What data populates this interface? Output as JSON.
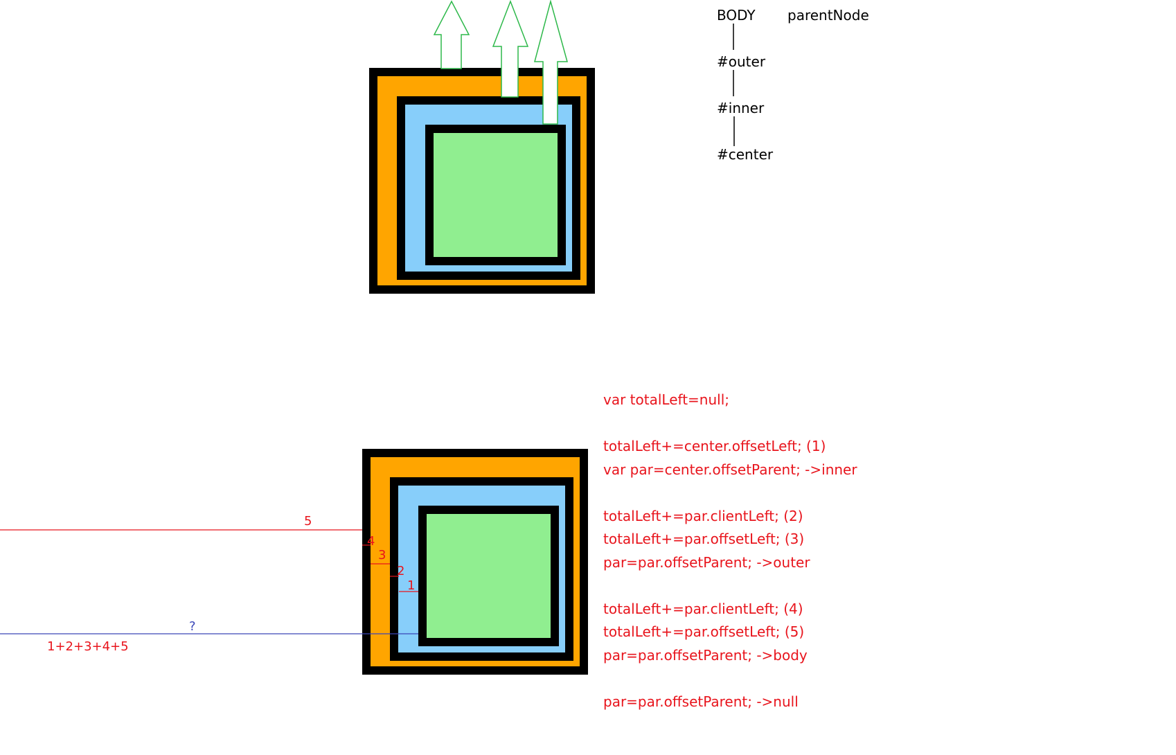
{
  "tree": {
    "nodes": [
      "BODY",
      "#outer",
      "#inner",
      "#center"
    ],
    "relation_label": "parentNode"
  },
  "code": {
    "lines": [
      "var totalLeft=null;",
      "totalLeft+=center.offsetLeft;  (1)",
      "var par=center.offsetParent;  ->inner",
      "totalLeft+=par.clientLeft; (2)",
      "totalLeft+=par.offsetLeft; (3)",
      "par=par.offsetParent; ->outer",
      "totalLeft+=par.clientLeft; (4)",
      "totalLeft+=par.offsetLeft; (5)",
      "par=par.offsetParent; ->body",
      "par=par.offsetParent; ->null"
    ]
  },
  "markers": {
    "m1": "1",
    "m2": "2",
    "m3": "3",
    "m4": "4",
    "m5": "5",
    "question": "?",
    "sum": "1+2+3+4+5"
  },
  "colors": {
    "outer": "#ffa500",
    "inner": "#87cefa",
    "center": "#90ee90",
    "border": "#000000",
    "code_text": "#e8141c",
    "arrow": "#2db84a",
    "total_line": "#3a46b8"
  }
}
